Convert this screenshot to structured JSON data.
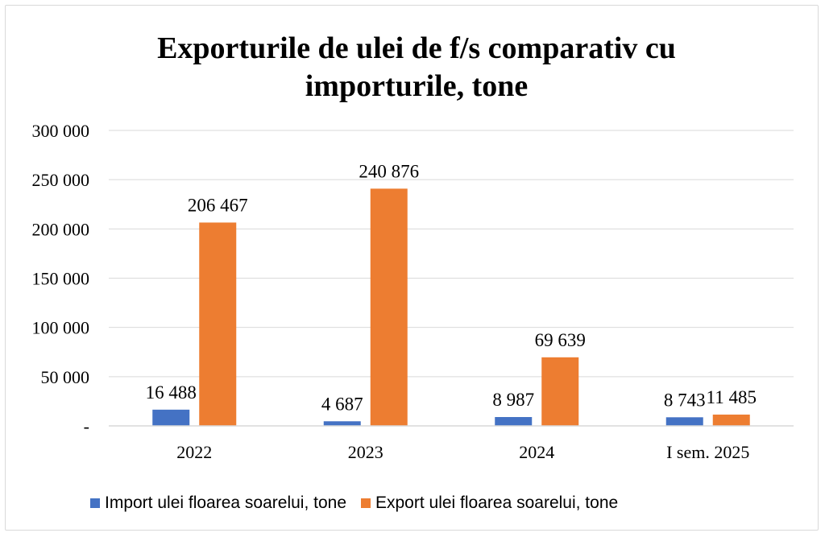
{
  "chart_data": {
    "type": "bar",
    "title": "Exporturile de ulei de f/s comparativ cu importurile, tone",
    "categories": [
      "2022",
      "2023",
      "2024",
      "I sem. 2025"
    ],
    "series": [
      {
        "name": "Import ulei floarea soarelui, tone",
        "color": "#4472C4",
        "values": [
          16488,
          4687,
          8987,
          8743
        ],
        "labels": [
          "16 488",
          "4 687",
          "8 987",
          "8 743"
        ]
      },
      {
        "name": "Export ulei floarea soarelui, tone",
        "color": "#ED7D31",
        "values": [
          206467,
          240876,
          69639,
          11485
        ],
        "labels": [
          "206 467",
          "240 876",
          "69 639",
          "11 485"
        ]
      }
    ],
    "ylim": [
      0,
      300000
    ],
    "yticks": [
      0,
      50000,
      100000,
      150000,
      200000,
      250000,
      300000
    ],
    "ytick_labels": [
      "-",
      "50 000",
      "100 000",
      "150 000",
      "200 000",
      "250 000",
      "300 000"
    ],
    "xlabel": "",
    "ylabel": "",
    "grid": true,
    "legend_position": "bottom"
  }
}
